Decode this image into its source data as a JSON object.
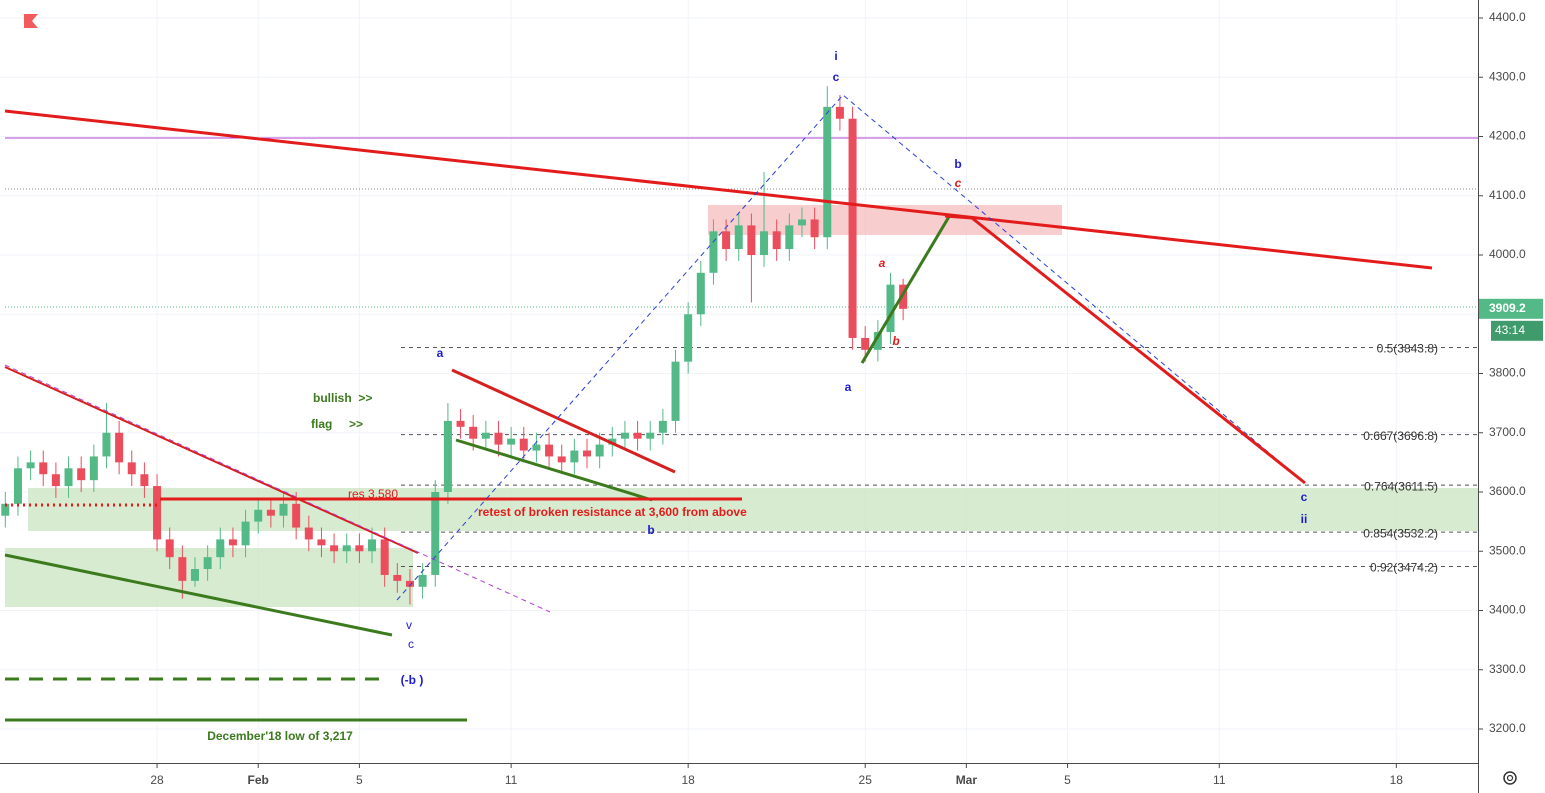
{
  "chart_data": {
    "type": "candlestick",
    "x": [
      22,
      22.5,
      23,
      23.5,
      24,
      24.5,
      25,
      25.5,
      26,
      26.5,
      27,
      27.5,
      28,
      28.5,
      29,
      29.5,
      30,
      30.5,
      31,
      31.5,
      32,
      32.5,
      33,
      33.5,
      34,
      34.5,
      35,
      35.5,
      36,
      36.5,
      37,
      37.5,
      38,
      38.5,
      39,
      39.5,
      40,
      40.5,
      41,
      41.5,
      42,
      42.5,
      43,
      43.5,
      44,
      44.5,
      45,
      45.5,
      46,
      46.5,
      47,
      47.5,
      48,
      48.5,
      49,
      49.5,
      50,
      50.5,
      51,
      51.5,
      52,
      52.5,
      53,
      53.5,
      54,
      54.5,
      55,
      55.5,
      56,
      56.5,
      57,
      57.5
    ],
    "open": [
      3560,
      3580,
      3640,
      3650,
      3630,
      3610,
      3640,
      3620,
      3660,
      3700,
      3650,
      3630,
      3610,
      3520,
      3490,
      3450,
      3470,
      3490,
      3520,
      3510,
      3550,
      3570,
      3560,
      3580,
      3540,
      3520,
      3510,
      3500,
      3510,
      3500,
      3520,
      3460,
      3450,
      3440,
      3460,
      3600,
      3720,
      3710,
      3690,
      3700,
      3680,
      3690,
      3670,
      3680,
      3660,
      3650,
      3670,
      3660,
      3680,
      3690,
      3700,
      3690,
      3700,
      3720,
      3820,
      3900,
      3970,
      4040,
      4010,
      4050,
      4000,
      4040,
      4010,
      4050,
      4060,
      4030,
      4250,
      4230,
      3860,
      3840,
      3870,
      3950
    ],
    "high": [
      3600,
      3660,
      3670,
      3670,
      3650,
      3660,
      3660,
      3680,
      3750,
      3720,
      3670,
      3650,
      3630,
      3540,
      3510,
      3490,
      3510,
      3540,
      3540,
      3570,
      3590,
      3590,
      3600,
      3600,
      3560,
      3540,
      3530,
      3530,
      3530,
      3540,
      3540,
      3480,
      3470,
      3480,
      3620,
      3750,
      3740,
      3730,
      3720,
      3720,
      3710,
      3710,
      3700,
      3700,
      3680,
      3690,
      3690,
      3700,
      3710,
      3720,
      3720,
      3720,
      3740,
      3840,
      3920,
      3990,
      4060,
      4060,
      4070,
      4070,
      4140,
      4060,
      4070,
      4080,
      4080,
      4285,
      4270,
      4250,
      3880,
      3890,
      3970,
      3960
    ],
    "low": [
      3540,
      3560,
      3620,
      3610,
      3590,
      3590,
      3600,
      3600,
      3640,
      3630,
      3610,
      3590,
      3500,
      3470,
      3420,
      3440,
      3450,
      3470,
      3490,
      3490,
      3530,
      3540,
      3540,
      3520,
      3500,
      3490,
      3480,
      3480,
      3480,
      3480,
      3440,
      3430,
      3410,
      3420,
      3440,
      3580,
      3690,
      3670,
      3670,
      3660,
      3660,
      3650,
      3650,
      3640,
      3630,
      3630,
      3640,
      3640,
      3660,
      3670,
      3670,
      3670,
      3680,
      3700,
      3800,
      3880,
      3950,
      3990,
      3990,
      3920,
      3980,
      3990,
      3990,
      4030,
      4010,
      4010,
      4210,
      3840,
      3820,
      3820,
      3850,
      3890
    ],
    "close": [
      3580,
      3640,
      3650,
      3630,
      3610,
      3640,
      3620,
      3660,
      3700,
      3650,
      3630,
      3610,
      3520,
      3490,
      3450,
      3470,
      3490,
      3520,
      3510,
      3550,
      3570,
      3560,
      3580,
      3540,
      3520,
      3510,
      3500,
      3510,
      3500,
      3520,
      3460,
      3450,
      3440,
      3460,
      3600,
      3720,
      3710,
      3690,
      3700,
      3680,
      3690,
      3670,
      3680,
      3660,
      3650,
      3670,
      3660,
      3680,
      3690,
      3700,
      3690,
      3700,
      3720,
      3820,
      3900,
      3970,
      4040,
      4010,
      4050,
      4000,
      4040,
      4010,
      4050,
      4060,
      4030,
      4250,
      4230,
      3860,
      3840,
      3870,
      3950,
      3909.2
    ],
    "up_color": "#53b987",
    "down_color": "#eb4d5c",
    "xlim": [
      21.79,
      80.23
    ],
    "xticks": [
      {
        "value": 28,
        "label": "28"
      },
      {
        "value": 32,
        "label": "Feb"
      },
      {
        "value": 36,
        "label": "5"
      },
      {
        "value": 42,
        "label": "11"
      },
      {
        "value": 49,
        "label": "18"
      },
      {
        "value": 56,
        "label": "25"
      },
      {
        "value": 60,
        "label": "Mar"
      },
      {
        "value": 64,
        "label": "5"
      },
      {
        "value": 70,
        "label": "11"
      },
      {
        "value": 77,
        "label": "18"
      }
    ],
    "ylim": [
      3142.6,
      4430.4
    ],
    "yticks": [
      {
        "value": 3200,
        "label": "3200.0"
      },
      {
        "value": 3300,
        "label": "3300.0"
      },
      {
        "value": 3400,
        "label": "3400.0"
      },
      {
        "value": 3500,
        "label": "3500.0"
      },
      {
        "value": 3600,
        "label": "3600.0"
      },
      {
        "value": 3700,
        "label": "3700.0"
      },
      {
        "value": 3800,
        "label": "3800.0"
      },
      {
        "value": 3900,
        "label": "3900.0"
      },
      {
        "value": 4000,
        "label": "4000.0"
      },
      {
        "value": 4100,
        "label": "4100.0"
      },
      {
        "value": 4200,
        "label": "4200.0"
      },
      {
        "value": 4300,
        "label": "4300.0"
      },
      {
        "value": 4400,
        "label": "4400.0"
      }
    ],
    "grid": true,
    "fib_levels": [
      {
        "value": 3843.8,
        "label": "0.5(3843.8)"
      },
      {
        "value": 3696.8,
        "label": "0.667(3696.8)"
      },
      {
        "value": 3611.5,
        "label": "0.764(3611.5)"
      },
      {
        "value": 3532.2,
        "label": "0.854(3532.2)"
      },
      {
        "value": 3474.2,
        "label": "0.92(3474.2)"
      }
    ],
    "countdown": "43:14",
    "annotations": [
      {
        "text": "i",
        "color": "#1c1ccc"
      },
      {
        "text": "c",
        "color": "#1c1ccc"
      },
      {
        "text": "b",
        "color": "#1c1ccc"
      },
      {
        "text": "c",
        "color": "#e31b1b"
      },
      {
        "text": "a",
        "color": "#e31b1b"
      },
      {
        "text": "b",
        "color": "#e31b1b"
      },
      {
        "text": "a",
        "color": "#1c1ccc"
      },
      {
        "text": "a",
        "color": "#1c1ccc"
      },
      {
        "text": "bullish  >>",
        "color": "#3c7a1e"
      },
      {
        "text": "flag     >>",
        "color": "#3c7a1e"
      },
      {
        "text": "res 3,580",
        "color": "#e31b1b"
      },
      {
        "text": "retest of broken resistance at 3,600 from above",
        "color": "#e31b1b"
      },
      {
        "text": "b",
        "color": "#1c1ccc"
      },
      {
        "text": "v",
        "color": "#1c1ccc"
      },
      {
        "text": "c",
        "color": "#1c1ccc"
      },
      {
        "text": "(-b )",
        "color": "#1c1ccc"
      },
      {
        "text": "December'18 low of 3,217",
        "color": "#3c7a1e"
      },
      {
        "text": "c",
        "color": "#1c1ccc"
      },
      {
        "text": "ii",
        "color": "#1c1ccc"
      }
    ]
  }
}
